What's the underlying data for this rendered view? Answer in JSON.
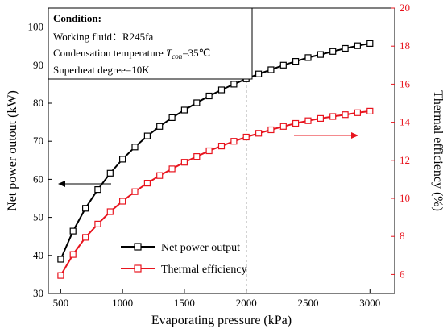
{
  "chart_data": {
    "type": "line",
    "xlabel": "Evaporating pressure (kPa)",
    "ylabel_left": "Net power outout (kW)",
    "ylabel_right": "Thermal efficiency (%)",
    "xlim": [
      400,
      3200
    ],
    "ylim_left": [
      30,
      105
    ],
    "ylim_right": [
      5,
      20
    ],
    "x_ticks": [
      500,
      1000,
      1500,
      2000,
      2500,
      3000
    ],
    "y_ticks_left": [
      30,
      40,
      50,
      60,
      70,
      80,
      90,
      100
    ],
    "y_ticks_right": [
      6,
      8,
      10,
      12,
      14,
      16,
      18,
      20
    ],
    "vline_x": 2000,
    "x": [
      500,
      600,
      700,
      800,
      900,
      1000,
      1100,
      1200,
      1300,
      1400,
      1500,
      1600,
      1700,
      1800,
      1900,
      2000,
      2100,
      2200,
      2300,
      2400,
      2500,
      2600,
      2700,
      2800,
      2900,
      3000
    ],
    "series": [
      {
        "name": "Net power output",
        "axis": "left",
        "color": "#000000",
        "values": [
          39.0,
          46.4,
          52.4,
          57.3,
          61.6,
          65.3,
          68.5,
          71.4,
          73.9,
          76.2,
          78.2,
          80.1,
          81.9,
          83.5,
          85.0,
          86.4,
          87.7,
          88.8,
          90.0,
          91.0,
          92.0,
          92.8,
          93.6,
          94.4,
          95.1,
          95.7
        ]
      },
      {
        "name": "Thermal efficiency",
        "axis": "right",
        "color": "#e8141e",
        "values": [
          5.95,
          7.05,
          7.95,
          8.65,
          9.3,
          9.85,
          10.35,
          10.8,
          11.2,
          11.55,
          11.9,
          12.2,
          12.5,
          12.75,
          13.0,
          13.22,
          13.42,
          13.6,
          13.78,
          13.94,
          14.08,
          14.2,
          14.3,
          14.4,
          14.5,
          14.58
        ]
      }
    ],
    "annotation_box": {
      "heading": "Condition:",
      "line1": "Working fluid：R245fa",
      "line2_prefix": "Condensation temperature ",
      "line2_var": "T",
      "line2_sub": "con",
      "line2_suffix": "=35℃",
      "line3": "Superheat degree=10K"
    },
    "legend_placement": "bottom-right",
    "grid": false
  }
}
